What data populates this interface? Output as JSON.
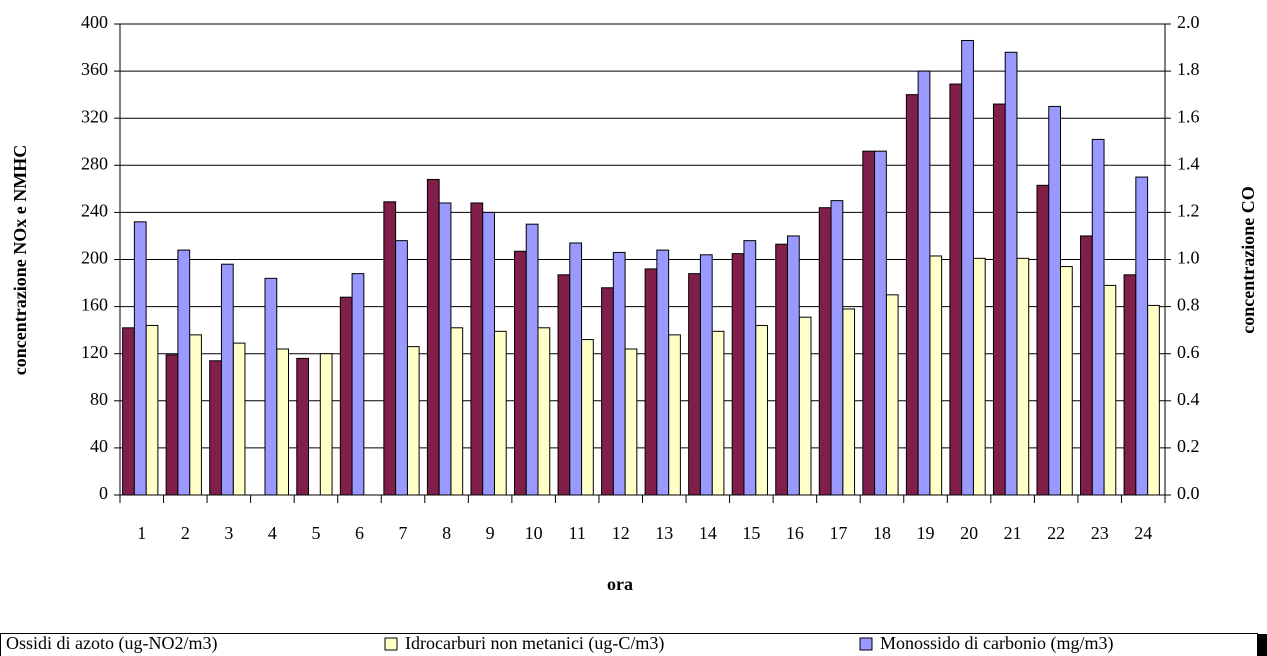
{
  "chart_data": {
    "type": "bar",
    "xlabel": "ora",
    "ylabel": "concentrazione NOx e NMHC",
    "y2label": "concentrazione CO",
    "categories": [
      "1",
      "2",
      "3",
      "4",
      "5",
      "6",
      "7",
      "8",
      "9",
      "10",
      "11",
      "12",
      "13",
      "14",
      "15",
      "16",
      "17",
      "18",
      "19",
      "20",
      "21",
      "22",
      "23",
      "24"
    ],
    "series": [
      {
        "name": "Ossidi di azoto (ug-NO2/m3)",
        "color": "#7f1f4a",
        "values": [
          142,
          119,
          114,
          null,
          116,
          168,
          249,
          268,
          248,
          207,
          187,
          176,
          192,
          188,
          205,
          213,
          244,
          292,
          340,
          349,
          332,
          263,
          220,
          187
        ]
      },
      {
        "name": "Idrocarburi non metanici (ug-C/m3)",
        "color": "#ffffc8",
        "values": [
          144,
          136,
          129,
          124,
          120,
          null,
          126,
          142,
          139,
          142,
          132,
          124,
          136,
          139,
          144,
          151,
          158,
          170,
          203,
          201,
          201,
          194,
          178,
          161
        ]
      },
      {
        "name": "Monossido di carbonio (mg/m3)",
        "color": "#9999ff",
        "axis": "y2",
        "values": [
          1.16,
          1.04,
          0.98,
          0.92,
          null,
          0.94,
          1.08,
          1.24,
          1.2,
          1.15,
          1.07,
          1.03,
          1.04,
          1.02,
          1.08,
          1.1,
          1.25,
          1.46,
          1.8,
          1.93,
          1.88,
          1.65,
          1.51,
          1.35
        ]
      }
    ],
    "ylim": [
      0,
      400
    ],
    "yticks": [
      0,
      40,
      80,
      120,
      160,
      200,
      240,
      280,
      320,
      360,
      400
    ],
    "y2lim": [
      0,
      2
    ],
    "y2ticks": [
      {
        "value": 0,
        "label": "0.0"
      },
      {
        "value": 0.2,
        "label": "0.2"
      },
      {
        "value": 0.4,
        "label": "0.4"
      },
      {
        "value": 0.6,
        "label": "0.6"
      },
      {
        "value": 0.8,
        "label": "0.8"
      },
      {
        "value": 1,
        "label": "1.0"
      },
      {
        "value": 1.2,
        "label": "1.2"
      },
      {
        "value": 1.4,
        "label": "1.4"
      },
      {
        "value": 1.6,
        "label": "1.6"
      },
      {
        "value": 1.8,
        "label": "1.8"
      },
      {
        "value": 2,
        "label": "2.0"
      }
    ],
    "grid": true,
    "legend": "bottom"
  }
}
